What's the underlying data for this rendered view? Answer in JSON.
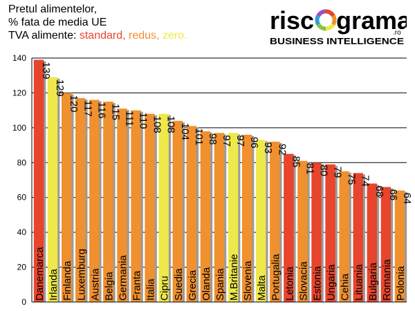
{
  "title": {
    "line1": "Pretul alimentelor,",
    "line2": "% fata de media UE",
    "vat_prefix": "TVA alimente: ",
    "vat_standard": "standard,",
    "vat_reduced": "redus,",
    "vat_zero": "zero."
  },
  "logo": {
    "word_left": "risc",
    "word_right": "grama",
    "suffix": ".ro",
    "tagline": "BUSINESS INTELLIGENCE"
  },
  "colors": {
    "standard": "#e8452c",
    "reduced": "#f0902e",
    "zero": "#eee84a"
  },
  "chart_data": {
    "type": "bar",
    "categories": [
      "Danemarca",
      "Irlanda",
      "Finlanda",
      "Luxemburg",
      "Austria",
      "Belgia",
      "Germania",
      "Franta",
      "Italia",
      "Cipru",
      "Suedia",
      "Grecia",
      "Olanda",
      "Spania",
      "M.Britanie",
      "Slovenia",
      "Malta",
      "Portugalia",
      "Letonia",
      "Slovacia",
      "Estonia",
      "Ungaria",
      "Cehia",
      "Lituania",
      "Bulgaria",
      "Romania",
      "Polonia"
    ],
    "values": [
      139,
      129,
      120,
      117,
      116,
      115,
      111,
      110,
      108,
      108,
      104,
      101,
      98,
      97,
      97,
      96,
      93,
      92,
      85,
      81,
      80,
      79,
      75,
      74,
      68,
      66,
      64
    ],
    "vat_type": [
      "standard",
      "zero",
      "reduced",
      "reduced",
      "reduced",
      "reduced",
      "reduced",
      "reduced",
      "reduced",
      "zero",
      "reduced",
      "reduced",
      "reduced",
      "reduced",
      "zero",
      "reduced",
      "zero",
      "reduced",
      "standard",
      "reduced",
      "standard",
      "standard",
      "reduced",
      "standard",
      "standard",
      "standard",
      "reduced"
    ],
    "ylim": [
      0,
      140
    ],
    "yticks": [
      0,
      20,
      40,
      60,
      80,
      100,
      120,
      140
    ],
    "grid": true
  }
}
